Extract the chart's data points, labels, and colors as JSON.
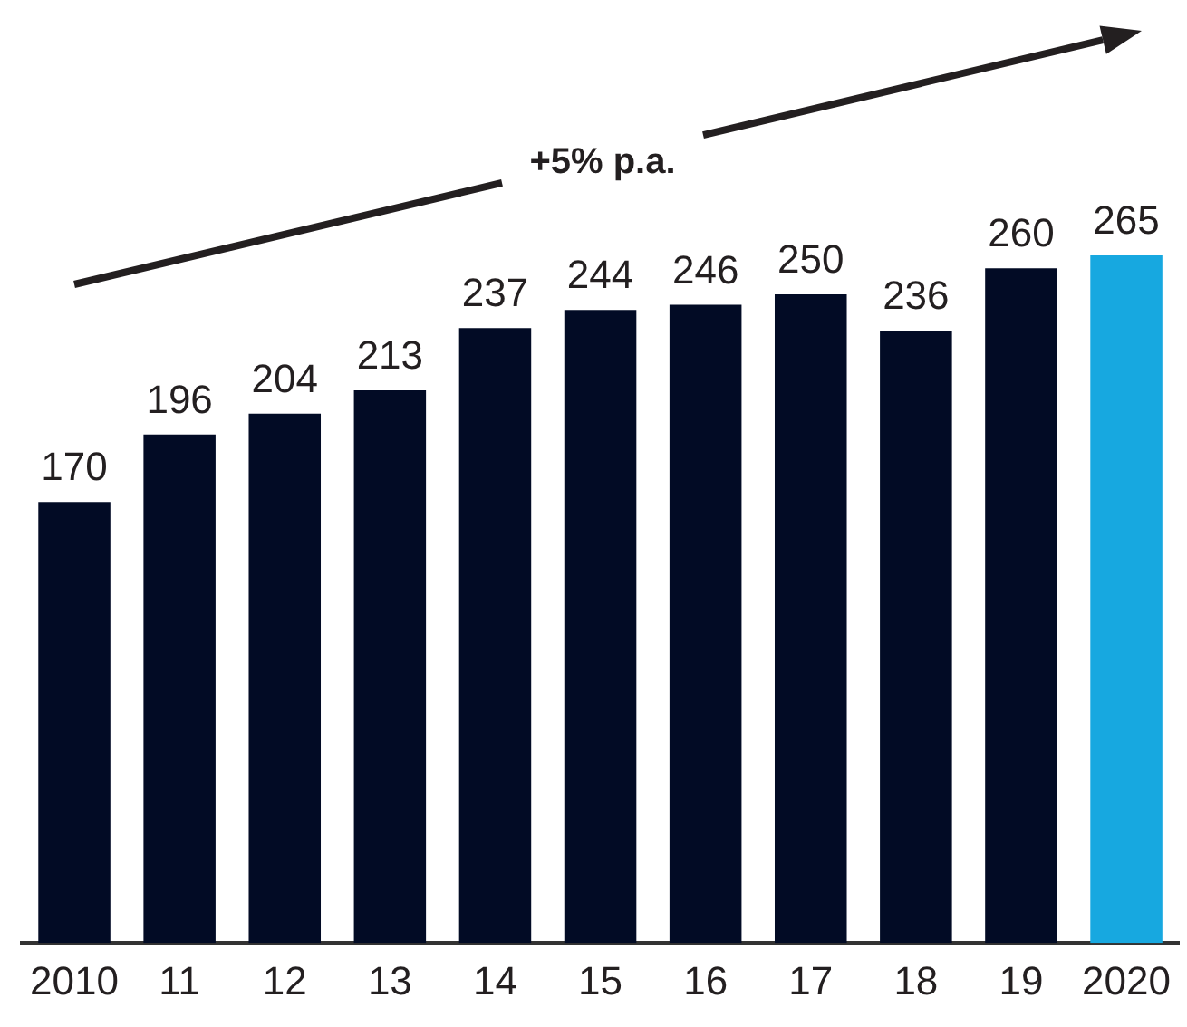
{
  "chart_data": {
    "type": "bar",
    "categories": [
      "2010",
      "11",
      "12",
      "13",
      "14",
      "15",
      "16",
      "17",
      "18",
      "19",
      "2020"
    ],
    "values": [
      170,
      196,
      204,
      213,
      237,
      244,
      246,
      250,
      236,
      260,
      265
    ],
    "colors": [
      "#020b25",
      "#020b25",
      "#020b25",
      "#020b25",
      "#020b25",
      "#020b25",
      "#020b25",
      "#020b25",
      "#020b25",
      "#020b25",
      "#17a8e0"
    ],
    "tick_labels": "x",
    "data_labels": true,
    "annotations": [
      "+5% p.a."
    ]
  }
}
